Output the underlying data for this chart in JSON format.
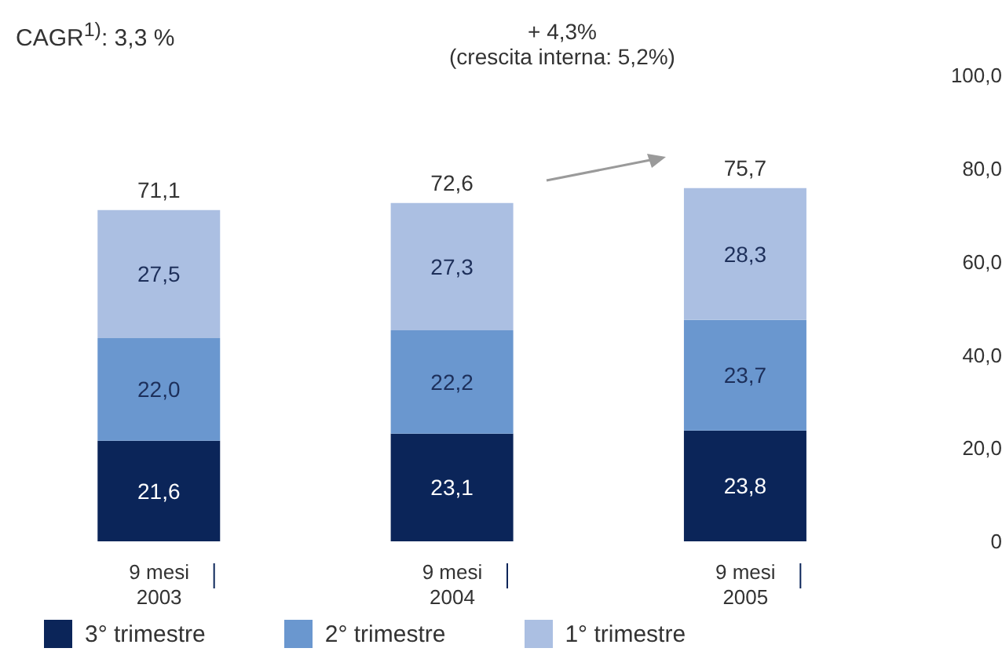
{
  "chart_data": {
    "type": "bar",
    "stacked": true,
    "categories": [
      "9 mesi\n2003",
      "9 mesi\n2004",
      "9 mesi\n2005"
    ],
    "series": [
      {
        "name": "3° trimestre",
        "color": "#0b2559",
        "values": [
          21.6,
          23.1,
          23.8
        ],
        "value_labels": [
          "21,6",
          "23,1",
          "23,8"
        ]
      },
      {
        "name": "2° trimestre",
        "color": "#6a97cf",
        "values": [
          22.0,
          22.2,
          23.7
        ],
        "value_labels": [
          "22,0",
          "22,2",
          "23,7"
        ]
      },
      {
        "name": "1° trimestre",
        "color": "#abbfe2",
        "values": [
          27.5,
          27.3,
          28.3
        ],
        "value_labels": [
          "27,5",
          "27,3",
          "28,3"
        ]
      }
    ],
    "totals": [
      "71,1",
      "72,6",
      "75,7"
    ],
    "ylim": [
      0,
      100
    ],
    "yticks": [
      0,
      {
        "value": 20,
        "label": "20,0"
      },
      {
        "value": 40,
        "label": "40,0"
      },
      {
        "value": 60,
        "label": "60,0"
      },
      {
        "value": 80,
        "label": "80,0"
      },
      {
        "value": 100,
        "label": "100,0"
      }
    ],
    "annotations": [
      "CAGR$^{1)}$: 3,3 %",
      "+ 4,3%\n(crescita interna: 5,2%)"
    ],
    "legend": "bottom left"
  }
}
